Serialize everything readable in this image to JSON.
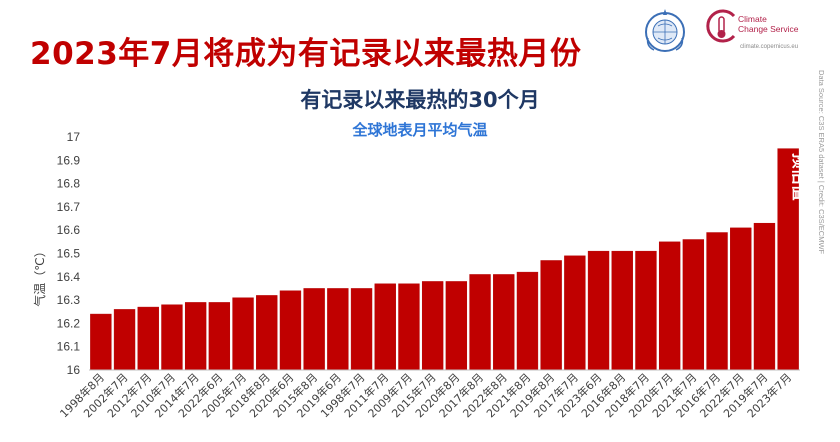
{
  "header": {
    "headline": "2023年7月将成为有记录以来最热月份",
    "c3s_line1": "Climate",
    "c3s_line2": "Change Service",
    "c3s_url": "climate.copernicus.eu",
    "credit": "Data Source: C3S ERA5 dataset | Credit: C3S/ECMWF"
  },
  "colors": {
    "bar": "#c00000",
    "bar_edge": "#b40000",
    "headline": "#c00000",
    "title": "#1f3864",
    "subtitle": "#2e75d6"
  },
  "chart_data": {
    "type": "bar",
    "title": "有记录以来最热的30个月",
    "subtitle": "全球地表月平均气温",
    "ylabel": "气温（℃）",
    "xlabel": "",
    "ylim": [
      16,
      17
    ],
    "yticks": [
      16,
      16.1,
      16.2,
      16.3,
      16.4,
      16.5,
      16.6,
      16.7,
      16.8,
      16.9,
      17
    ],
    "ytick_labels": [
      "16",
      "16.1",
      "16.2",
      "16.3",
      "16.4",
      "16.5",
      "16.6",
      "16.7",
      "16.8",
      "16.9",
      "17"
    ],
    "grid": false,
    "categories": [
      "1998年8月",
      "2002年7月",
      "2012年7月",
      "2010年7月",
      "2014年7月",
      "2022年6月",
      "2005年7月",
      "2018年8月",
      "2020年6月",
      "2015年8月",
      "2019年6月",
      "1998年7月",
      "2011年7月",
      "2009年7月",
      "2015年7月",
      "2020年8月",
      "2017年8月",
      "2022年8月",
      "2021年8月",
      "2019年8月",
      "2017年7月",
      "2023年6月",
      "2016年8月",
      "2018年7月",
      "2020年7月",
      "2021年7月",
      "2016年7月",
      "2022年7月",
      "2019年7月",
      "2023年7月"
    ],
    "values": [
      16.24,
      16.26,
      16.27,
      16.28,
      16.29,
      16.29,
      16.31,
      16.32,
      16.34,
      16.35,
      16.35,
      16.35,
      16.37,
      16.37,
      16.38,
      16.38,
      16.41,
      16.41,
      16.42,
      16.47,
      16.49,
      16.51,
      16.51,
      16.51,
      16.55,
      16.56,
      16.59,
      16.61,
      16.63,
      16.95
    ],
    "annotations": [
      {
        "category": "2023年7月",
        "text": "预估值"
      }
    ]
  }
}
